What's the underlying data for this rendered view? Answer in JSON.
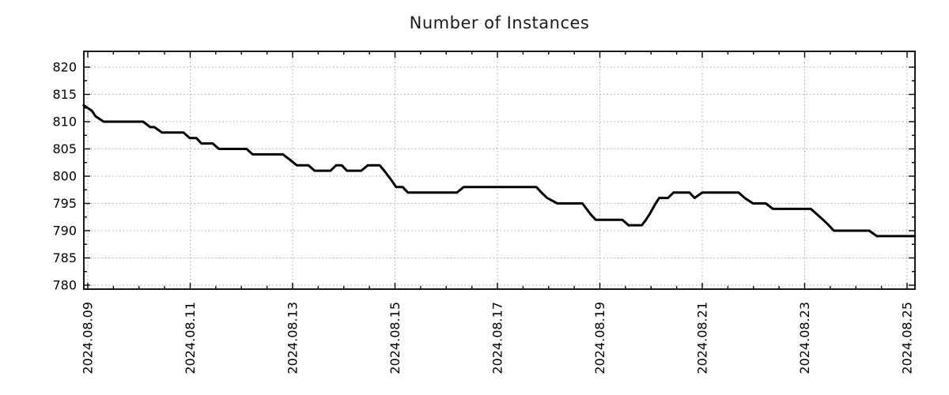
{
  "title": "Number of Instances",
  "colors": {
    "line": "#000000",
    "grid": "#a8a8a8",
    "frame": "#000000",
    "title_text": "#1a1a1a",
    "background": "#ffffff"
  },
  "chart_data": {
    "type": "line",
    "title": "Number of Instances",
    "xlabel": "",
    "ylabel": "",
    "legend": "none",
    "grid": "dotted-at-major-ticks",
    "x_axis": {
      "unit": "date",
      "domain_days": [
        -0.08,
        16.15
      ],
      "major_tick_interval_days": 2,
      "minor_tick_interval_days": 0.5,
      "ticks": [
        {
          "day": 0,
          "label": "2024.08.09"
        },
        {
          "day": 2,
          "label": "2024.08.11"
        },
        {
          "day": 4,
          "label": "2024.08.13"
        },
        {
          "day": 6,
          "label": "2024.08.15"
        },
        {
          "day": 8,
          "label": "2024.08.17"
        },
        {
          "day": 10,
          "label": "2024.08.19"
        },
        {
          "day": 12,
          "label": "2024.08.21"
        },
        {
          "day": 14,
          "label": "2024.08.23"
        },
        {
          "day": 16,
          "label": "2024.08.25"
        }
      ],
      "label_rotation_deg": 90
    },
    "y_axis": {
      "domain": [
        779.3,
        822.9
      ],
      "ticks": [
        780,
        785,
        790,
        795,
        800,
        805,
        810,
        815,
        820
      ],
      "minor_tick_interval": 2.5
    },
    "series": [
      {
        "name": "instances",
        "color": "#000000",
        "points_day_value": [
          [
            -0.08,
            813
          ],
          [
            0.08,
            812
          ],
          [
            0.15,
            811
          ],
          [
            0.31,
            810
          ],
          [
            1.08,
            810
          ],
          [
            1.22,
            809
          ],
          [
            1.3,
            809
          ],
          [
            1.45,
            808
          ],
          [
            1.87,
            808
          ],
          [
            1.99,
            807
          ],
          [
            2.12,
            807
          ],
          [
            2.22,
            806
          ],
          [
            2.44,
            806
          ],
          [
            2.56,
            805
          ],
          [
            3.1,
            805
          ],
          [
            3.22,
            804
          ],
          [
            3.81,
            804
          ],
          [
            3.95,
            803
          ],
          [
            4.08,
            802
          ],
          [
            4.31,
            802
          ],
          [
            4.43,
            801
          ],
          [
            4.74,
            801
          ],
          [
            4.85,
            802
          ],
          [
            4.96,
            802
          ],
          [
            5.06,
            801
          ],
          [
            5.34,
            801
          ],
          [
            5.47,
            802
          ],
          [
            5.7,
            802
          ],
          [
            5.79,
            801
          ],
          [
            5.87,
            800
          ],
          [
            5.95,
            799
          ],
          [
            6.02,
            798
          ],
          [
            6.15,
            798
          ],
          [
            6.25,
            797
          ],
          [
            7.21,
            797
          ],
          [
            7.34,
            798
          ],
          [
            8.76,
            798
          ],
          [
            8.86,
            797
          ],
          [
            8.97,
            796
          ],
          [
            9.17,
            795
          ],
          [
            9.66,
            795
          ],
          [
            9.74,
            794
          ],
          [
            9.82,
            793
          ],
          [
            9.92,
            792
          ],
          [
            10.44,
            792
          ],
          [
            10.56,
            791
          ],
          [
            10.82,
            791
          ],
          [
            10.9,
            792
          ],
          [
            10.97,
            793
          ],
          [
            11.03,
            794
          ],
          [
            11.09,
            795
          ],
          [
            11.16,
            796
          ],
          [
            11.33,
            796
          ],
          [
            11.44,
            797
          ],
          [
            11.75,
            797
          ],
          [
            11.85,
            796
          ],
          [
            12.0,
            797
          ],
          [
            12.71,
            797
          ],
          [
            12.83,
            796
          ],
          [
            12.99,
            795
          ],
          [
            13.24,
            795
          ],
          [
            13.38,
            794
          ],
          [
            14.12,
            794
          ],
          [
            14.24,
            793
          ],
          [
            14.36,
            792
          ],
          [
            14.47,
            791
          ],
          [
            14.57,
            790
          ],
          [
            15.26,
            790
          ],
          [
            15.41,
            789
          ],
          [
            16.15,
            789
          ]
        ]
      }
    ]
  }
}
